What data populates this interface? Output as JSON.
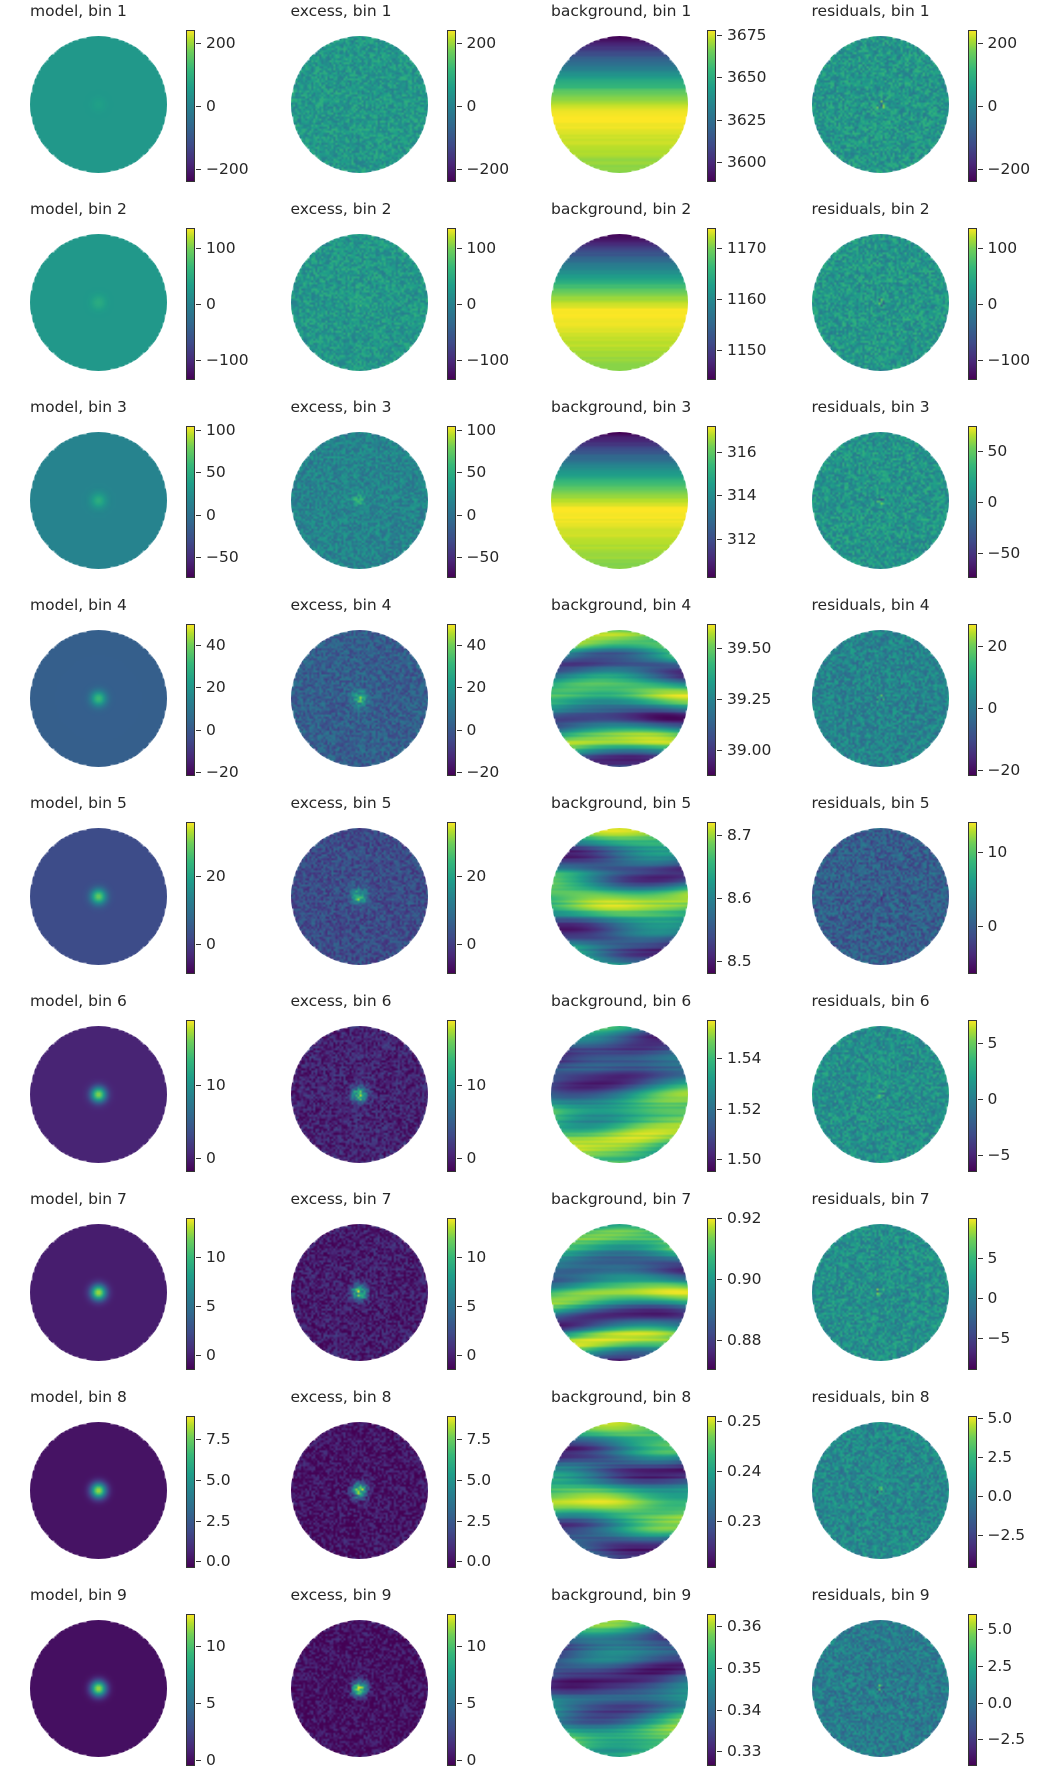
{
  "chart_data": [
    {
      "type": "heatmap",
      "title": "model, bin 1",
      "colormap": "viridis",
      "colorbar": {
        "range": [
          -240,
          240
        ],
        "ticks": [
          {
            "value": 200,
            "label": "200"
          },
          {
            "value": 0,
            "label": "0"
          },
          {
            "value": -200,
            "label": "−200"
          }
        ]
      },
      "pattern": "model",
      "level": 0.53,
      "spot": 0.08
    },
    {
      "type": "heatmap",
      "title": "excess, bin 1",
      "colormap": "viridis",
      "colorbar": {
        "range": [
          -240,
          240
        ],
        "ticks": [
          {
            "value": 200,
            "label": "200"
          },
          {
            "value": 0,
            "label": "0"
          },
          {
            "value": -200,
            "label": "−200"
          }
        ]
      },
      "pattern": "excess",
      "level": 0.53,
      "spot": 0.05
    },
    {
      "type": "heatmap",
      "title": "background, bin 1",
      "colormap": "viridis",
      "colorbar": {
        "range": [
          3588,
          3678
        ],
        "ticks": [
          {
            "value": 3675,
            "label": "3675"
          },
          {
            "value": 3650,
            "label": "3650"
          },
          {
            "value": 3625,
            "label": "3625"
          },
          {
            "value": 3600,
            "label": "3600"
          }
        ]
      },
      "pattern": "gradient"
    },
    {
      "type": "heatmap",
      "title": "residuals, bin 1",
      "colormap": "viridis",
      "colorbar": {
        "range": [
          -240,
          240
        ],
        "ticks": [
          {
            "value": 200,
            "label": "200"
          },
          {
            "value": 0,
            "label": "0"
          },
          {
            "value": -200,
            "label": "−200"
          }
        ]
      },
      "pattern": "residual",
      "level": 0.53
    },
    {
      "type": "heatmap",
      "title": "model, bin 2",
      "colormap": "viridis",
      "colorbar": {
        "range": [
          -135,
          135
        ],
        "ticks": [
          {
            "value": 100,
            "label": "100"
          },
          {
            "value": 0,
            "label": "0"
          },
          {
            "value": -100,
            "label": "−100"
          }
        ]
      },
      "pattern": "model",
      "level": 0.53,
      "spot": 0.18
    },
    {
      "type": "heatmap",
      "title": "excess, bin 2",
      "colormap": "viridis",
      "colorbar": {
        "range": [
          -135,
          135
        ],
        "ticks": [
          {
            "value": 100,
            "label": "100"
          },
          {
            "value": 0,
            "label": "0"
          },
          {
            "value": -100,
            "label": "−100"
          }
        ]
      },
      "pattern": "excess",
      "level": 0.53,
      "spot": 0.15
    },
    {
      "type": "heatmap",
      "title": "background, bin 2",
      "colormap": "viridis",
      "colorbar": {
        "range": [
          1144,
          1174
        ],
        "ticks": [
          {
            "value": 1170,
            "label": "1170"
          },
          {
            "value": 1160,
            "label": "1160"
          },
          {
            "value": 1150,
            "label": "1150"
          }
        ]
      },
      "pattern": "gradient"
    },
    {
      "type": "heatmap",
      "title": "residuals, bin 2",
      "colormap": "viridis",
      "colorbar": {
        "range": [
          -135,
          135
        ],
        "ticks": [
          {
            "value": 100,
            "label": "100"
          },
          {
            "value": 0,
            "label": "0"
          },
          {
            "value": -100,
            "label": "−100"
          }
        ]
      },
      "pattern": "residual",
      "level": 0.53
    },
    {
      "type": "heatmap",
      "title": "model, bin 3",
      "colormap": "viridis",
      "colorbar": {
        "range": [
          -75,
          105
        ],
        "ticks": [
          {
            "value": 100,
            "label": "100"
          },
          {
            "value": 50,
            "label": "50"
          },
          {
            "value": 0,
            "label": "0"
          },
          {
            "value": -50,
            "label": "−50"
          }
        ]
      },
      "pattern": "model",
      "level": 0.45,
      "spot": 0.32
    },
    {
      "type": "heatmap",
      "title": "excess, bin 3",
      "colormap": "viridis",
      "colorbar": {
        "range": [
          -75,
          105
        ],
        "ticks": [
          {
            "value": 100,
            "label": "100"
          },
          {
            "value": 50,
            "label": "50"
          },
          {
            "value": 0,
            "label": "0"
          },
          {
            "value": -50,
            "label": "−50"
          }
        ]
      },
      "pattern": "excess",
      "level": 0.45,
      "spot": 0.25
    },
    {
      "type": "heatmap",
      "title": "background, bin 3",
      "colormap": "viridis",
      "colorbar": {
        "range": [
          310.2,
          317.2
        ],
        "ticks": [
          {
            "value": 316,
            "label": "316"
          },
          {
            "value": 314,
            "label": "314"
          },
          {
            "value": 312,
            "label": "312"
          }
        ]
      },
      "pattern": "gradient"
    },
    {
      "type": "heatmap",
      "title": "residuals, bin 3",
      "colormap": "viridis",
      "colorbar": {
        "range": [
          -75,
          75
        ],
        "ticks": [
          {
            "value": 50,
            "label": "50"
          },
          {
            "value": 0,
            "label": "0"
          },
          {
            "value": -50,
            "label": "−50"
          }
        ]
      },
      "pattern": "residual",
      "level": 0.52
    },
    {
      "type": "heatmap",
      "title": "model, bin 4",
      "colormap": "viridis",
      "colorbar": {
        "range": [
          -22,
          50
        ],
        "ticks": [
          {
            "value": 40,
            "label": "40"
          },
          {
            "value": 20,
            "label": "20"
          },
          {
            "value": 0,
            "label": "0"
          },
          {
            "value": -20,
            "label": "−20"
          }
        ]
      },
      "pattern": "model",
      "level": 0.3,
      "spot": 0.55
    },
    {
      "type": "heatmap",
      "title": "excess, bin 4",
      "colormap": "viridis",
      "colorbar": {
        "range": [
          -22,
          50
        ],
        "ticks": [
          {
            "value": 40,
            "label": "40"
          },
          {
            "value": 20,
            "label": "20"
          },
          {
            "value": 0,
            "label": "0"
          },
          {
            "value": -20,
            "label": "−20"
          }
        ]
      },
      "pattern": "excess",
      "level": 0.3,
      "spot": 0.5
    },
    {
      "type": "heatmap",
      "title": "background, bin 4",
      "colormap": "viridis",
      "colorbar": {
        "range": [
          38.87,
          39.62
        ],
        "ticks": [
          {
            "value": 39.5,
            "label": "39.50"
          },
          {
            "value": 39.25,
            "label": "39.25"
          },
          {
            "value": 39.0,
            "label": "39.00"
          }
        ]
      },
      "pattern": "bands"
    },
    {
      "type": "heatmap",
      "title": "residuals, bin 4",
      "colormap": "viridis",
      "colorbar": {
        "range": [
          -22,
          27
        ],
        "ticks": [
          {
            "value": 20,
            "label": "20"
          },
          {
            "value": 0,
            "label": "0"
          },
          {
            "value": -20,
            "label": "−20"
          }
        ]
      },
      "pattern": "residual",
      "level": 0.45
    },
    {
      "type": "heatmap",
      "title": "model, bin 5",
      "colormap": "viridis",
      "colorbar": {
        "range": [
          -9,
          36
        ],
        "ticks": [
          {
            "value": 20,
            "label": "20"
          },
          {
            "value": 0,
            "label": "0"
          }
        ]
      },
      "pattern": "model",
      "level": 0.23,
      "spot": 0.7
    },
    {
      "type": "heatmap",
      "title": "excess, bin 5",
      "colormap": "viridis",
      "colorbar": {
        "range": [
          -9,
          36
        ],
        "ticks": [
          {
            "value": 20,
            "label": "20"
          },
          {
            "value": 0,
            "label": "0"
          }
        ]
      },
      "pattern": "excess",
      "level": 0.23,
      "spot": 0.6
    },
    {
      "type": "heatmap",
      "title": "background, bin 5",
      "colormap": "viridis",
      "colorbar": {
        "range": [
          8.48,
          8.72
        ],
        "ticks": [
          {
            "value": 8.7,
            "label": "8.7"
          },
          {
            "value": 8.6,
            "label": "8.6"
          },
          {
            "value": 8.5,
            "label": "8.5"
          }
        ]
      },
      "pattern": "bands"
    },
    {
      "type": "heatmap",
      "title": "residuals, bin 5",
      "colormap": "viridis",
      "colorbar": {
        "range": [
          -6.5,
          14
        ],
        "ticks": [
          {
            "value": 10,
            "label": "10"
          },
          {
            "value": 0,
            "label": "0"
          }
        ]
      },
      "pattern": "residual",
      "level": 0.3
    },
    {
      "type": "heatmap",
      "title": "model, bin 6",
      "colormap": "viridis",
      "colorbar": {
        "range": [
          -2,
          19
        ],
        "ticks": [
          {
            "value": 10,
            "label": "10"
          },
          {
            "value": 0,
            "label": "0"
          }
        ]
      },
      "pattern": "model",
      "level": 0.1,
      "spot": 0.8
    },
    {
      "type": "heatmap",
      "title": "excess, bin 6",
      "colormap": "viridis",
      "colorbar": {
        "range": [
          -2,
          19
        ],
        "ticks": [
          {
            "value": 10,
            "label": "10"
          },
          {
            "value": 0,
            "label": "0"
          }
        ]
      },
      "pattern": "excess",
      "level": 0.1,
      "spot": 0.7
    },
    {
      "type": "heatmap",
      "title": "background, bin 6",
      "colormap": "viridis",
      "colorbar": {
        "range": [
          1.495,
          1.555
        ],
        "ticks": [
          {
            "value": 1.54,
            "label": "1.54"
          },
          {
            "value": 1.52,
            "label": "1.52"
          },
          {
            "value": 1.5,
            "label": "1.50"
          }
        ]
      },
      "pattern": "bands"
    },
    {
      "type": "heatmap",
      "title": "residuals, bin 6",
      "colormap": "viridis",
      "colorbar": {
        "range": [
          -6.5,
          7
        ],
        "ticks": [
          {
            "value": 5,
            "label": "5"
          },
          {
            "value": 0,
            "label": "0"
          },
          {
            "value": -5,
            "label": "−5"
          }
        ]
      },
      "pattern": "residual",
      "level": 0.5
    },
    {
      "type": "heatmap",
      "title": "model, bin 7",
      "colormap": "viridis",
      "colorbar": {
        "range": [
          -1.5,
          14
        ],
        "ticks": [
          {
            "value": 10,
            "label": "10"
          },
          {
            "value": 5,
            "label": "5"
          },
          {
            "value": 0,
            "label": "0"
          }
        ]
      },
      "pattern": "model",
      "level": 0.08,
      "spot": 0.85
    },
    {
      "type": "heatmap",
      "title": "excess, bin 7",
      "colormap": "viridis",
      "colorbar": {
        "range": [
          -1.5,
          14
        ],
        "ticks": [
          {
            "value": 10,
            "label": "10"
          },
          {
            "value": 5,
            "label": "5"
          },
          {
            "value": 0,
            "label": "0"
          }
        ]
      },
      "pattern": "excess",
      "level": 0.08,
      "spot": 0.75
    },
    {
      "type": "heatmap",
      "title": "background, bin 7",
      "colormap": "viridis",
      "colorbar": {
        "range": [
          0.87,
          0.92
        ],
        "ticks": [
          {
            "value": 0.92,
            "label": "0.92"
          },
          {
            "value": 0.9,
            "label": "0.90"
          },
          {
            "value": 0.88,
            "label": "0.88"
          }
        ]
      },
      "pattern": "bands"
    },
    {
      "type": "heatmap",
      "title": "residuals, bin 7",
      "colormap": "viridis",
      "colorbar": {
        "range": [
          -9,
          10
        ],
        "ticks": [
          {
            "value": 5,
            "label": "5"
          },
          {
            "value": 0,
            "label": "0"
          },
          {
            "value": -5,
            "label": "−5"
          }
        ]
      },
      "pattern": "residual",
      "level": 0.5
    },
    {
      "type": "heatmap",
      "title": "model, bin 8",
      "colormap": "viridis",
      "colorbar": {
        "range": [
          -0.4,
          8.9
        ],
        "ticks": [
          {
            "value": 7.5,
            "label": "7.5"
          },
          {
            "value": 5.0,
            "label": "5.0"
          },
          {
            "value": 2.5,
            "label": "2.5"
          },
          {
            "value": 0.0,
            "label": "0.0"
          }
        ]
      },
      "pattern": "model",
      "level": 0.05,
      "spot": 0.85
    },
    {
      "type": "heatmap",
      "title": "excess, bin 8",
      "colormap": "viridis",
      "colorbar": {
        "range": [
          -0.4,
          8.9
        ],
        "ticks": [
          {
            "value": 7.5,
            "label": "7.5"
          },
          {
            "value": 5.0,
            "label": "5.0"
          },
          {
            "value": 2.5,
            "label": "2.5"
          },
          {
            "value": 0.0,
            "label": "0.0"
          }
        ]
      },
      "pattern": "excess",
      "level": 0.05,
      "spot": 0.75
    },
    {
      "type": "heatmap",
      "title": "background, bin 8",
      "colormap": "viridis",
      "colorbar": {
        "range": [
          0.2205,
          0.251
        ],
        "ticks": [
          {
            "value": 0.25,
            "label": "0.25"
          },
          {
            "value": 0.24,
            "label": "0.24"
          },
          {
            "value": 0.23,
            "label": "0.23"
          }
        ]
      },
      "pattern": "bands"
    },
    {
      "type": "heatmap",
      "title": "residuals, bin 8",
      "colormap": "viridis",
      "colorbar": {
        "range": [
          -4.6,
          5.1
        ],
        "ticks": [
          {
            "value": 5.0,
            "label": "5.0"
          },
          {
            "value": 2.5,
            "label": "2.5"
          },
          {
            "value": 0.0,
            "label": "0.0"
          },
          {
            "value": -2.5,
            "label": "−2.5"
          }
        ]
      },
      "pattern": "residual",
      "level": 0.47
    },
    {
      "type": "heatmap",
      "title": "model, bin 9",
      "colormap": "viridis",
      "colorbar": {
        "range": [
          -0.5,
          12.8
        ],
        "ticks": [
          {
            "value": 10,
            "label": "10"
          },
          {
            "value": 5,
            "label": "5"
          },
          {
            "value": 0,
            "label": "0"
          }
        ]
      },
      "pattern": "model",
      "level": 0.04,
      "spot": 0.85
    },
    {
      "type": "heatmap",
      "title": "excess, bin 9",
      "colormap": "viridis",
      "colorbar": {
        "range": [
          -0.5,
          12.8
        ],
        "ticks": [
          {
            "value": 10,
            "label": "10"
          },
          {
            "value": 5,
            "label": "5"
          },
          {
            "value": 0,
            "label": "0"
          }
        ]
      },
      "pattern": "excess",
      "level": 0.04,
      "spot": 0.75
    },
    {
      "type": "heatmap",
      "title": "background, bin 9",
      "colormap": "viridis",
      "colorbar": {
        "range": [
          0.3265,
          0.363
        ],
        "ticks": [
          {
            "value": 0.36,
            "label": "0.36"
          },
          {
            "value": 0.35,
            "label": "0.35"
          },
          {
            "value": 0.34,
            "label": "0.34"
          },
          {
            "value": 0.33,
            "label": "0.33"
          }
        ]
      },
      "pattern": "bands"
    },
    {
      "type": "heatmap",
      "title": "residuals, bin 9",
      "colormap": "viridis",
      "colorbar": {
        "range": [
          -4.3,
          6.0
        ],
        "ticks": [
          {
            "value": 5.0,
            "label": "5.0"
          },
          {
            "value": 2.5,
            "label": "2.5"
          },
          {
            "value": 0.0,
            "label": "0.0"
          },
          {
            "value": -2.5,
            "label": "−2.5"
          }
        ]
      },
      "pattern": "residual",
      "level": 0.42
    }
  ]
}
